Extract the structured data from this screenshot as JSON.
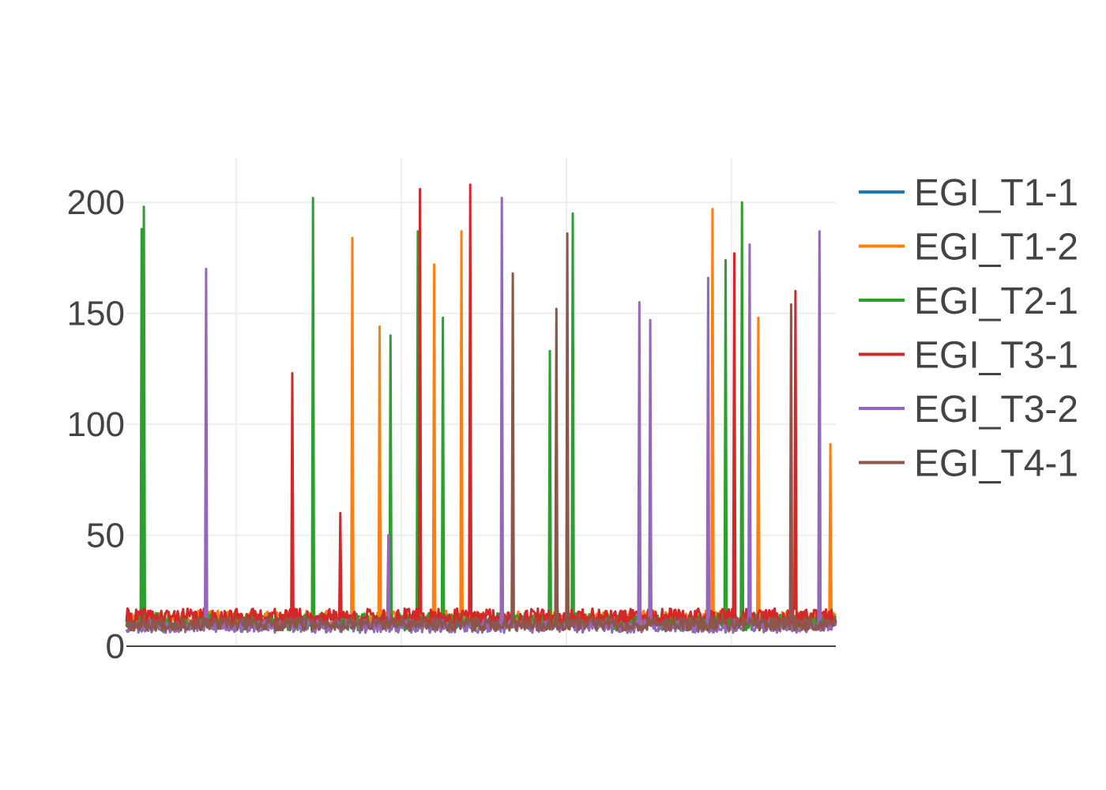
{
  "chart_data": {
    "type": "line",
    "x_range": [
      0,
      1290
    ],
    "y_range": [
      0,
      220
    ],
    "y_ticks": [
      0,
      50,
      100,
      150,
      200
    ],
    "x_grid": [
      200,
      500,
      800,
      1100
    ],
    "grid": true,
    "legend_position": "right",
    "series": [
      {
        "name": "EGI_T1-1",
        "color": "#1f77b4",
        "base": 11,
        "amp": 3,
        "seed": 11,
        "spikes": []
      },
      {
        "name": "EGI_T1-2",
        "color": "#ff7f0e",
        "base": 12,
        "amp": 4,
        "seed": 23,
        "spikes": [
          [
            410,
            184
          ],
          [
            460,
            144
          ],
          [
            560,
            172
          ],
          [
            610,
            187
          ],
          [
            1065,
            197
          ],
          [
            1150,
            148
          ],
          [
            1280,
            91
          ]
        ]
      },
      {
        "name": "EGI_T2-1",
        "color": "#2ca02c",
        "base": 11,
        "amp": 4,
        "seed": 37,
        "spikes": [
          [
            28,
            188
          ],
          [
            31,
            198
          ],
          [
            340,
            202
          ],
          [
            480,
            140
          ],
          [
            530,
            187
          ],
          [
            575,
            148
          ],
          [
            770,
            133
          ],
          [
            812,
            195
          ],
          [
            1090,
            174
          ],
          [
            1120,
            200
          ]
        ]
      },
      {
        "name": "EGI_T3-1",
        "color": "#d62728",
        "base": 13,
        "amp": 4,
        "seed": 41,
        "spikes": [
          [
            302,
            123
          ],
          [
            388,
            60
          ],
          [
            533,
            206
          ],
          [
            626,
            208
          ],
          [
            1105,
            177
          ],
          [
            1217,
            160
          ]
        ]
      },
      {
        "name": "EGI_T3-2",
        "color": "#9467bd",
        "base": 9,
        "amp": 3,
        "seed": 53,
        "spikes": [
          [
            145,
            170
          ],
          [
            477,
            50
          ],
          [
            682,
            202
          ],
          [
            932,
            155
          ],
          [
            952,
            147
          ],
          [
            1057,
            166
          ],
          [
            1133,
            181
          ],
          [
            1260,
            187
          ]
        ]
      },
      {
        "name": "EGI_T4-1",
        "color": "#8c564b",
        "base": 10,
        "amp": 3,
        "seed": 67,
        "spikes": [
          [
            702,
            168
          ],
          [
            782,
            152
          ],
          [
            802,
            186
          ],
          [
            1209,
            154
          ]
        ]
      }
    ]
  }
}
